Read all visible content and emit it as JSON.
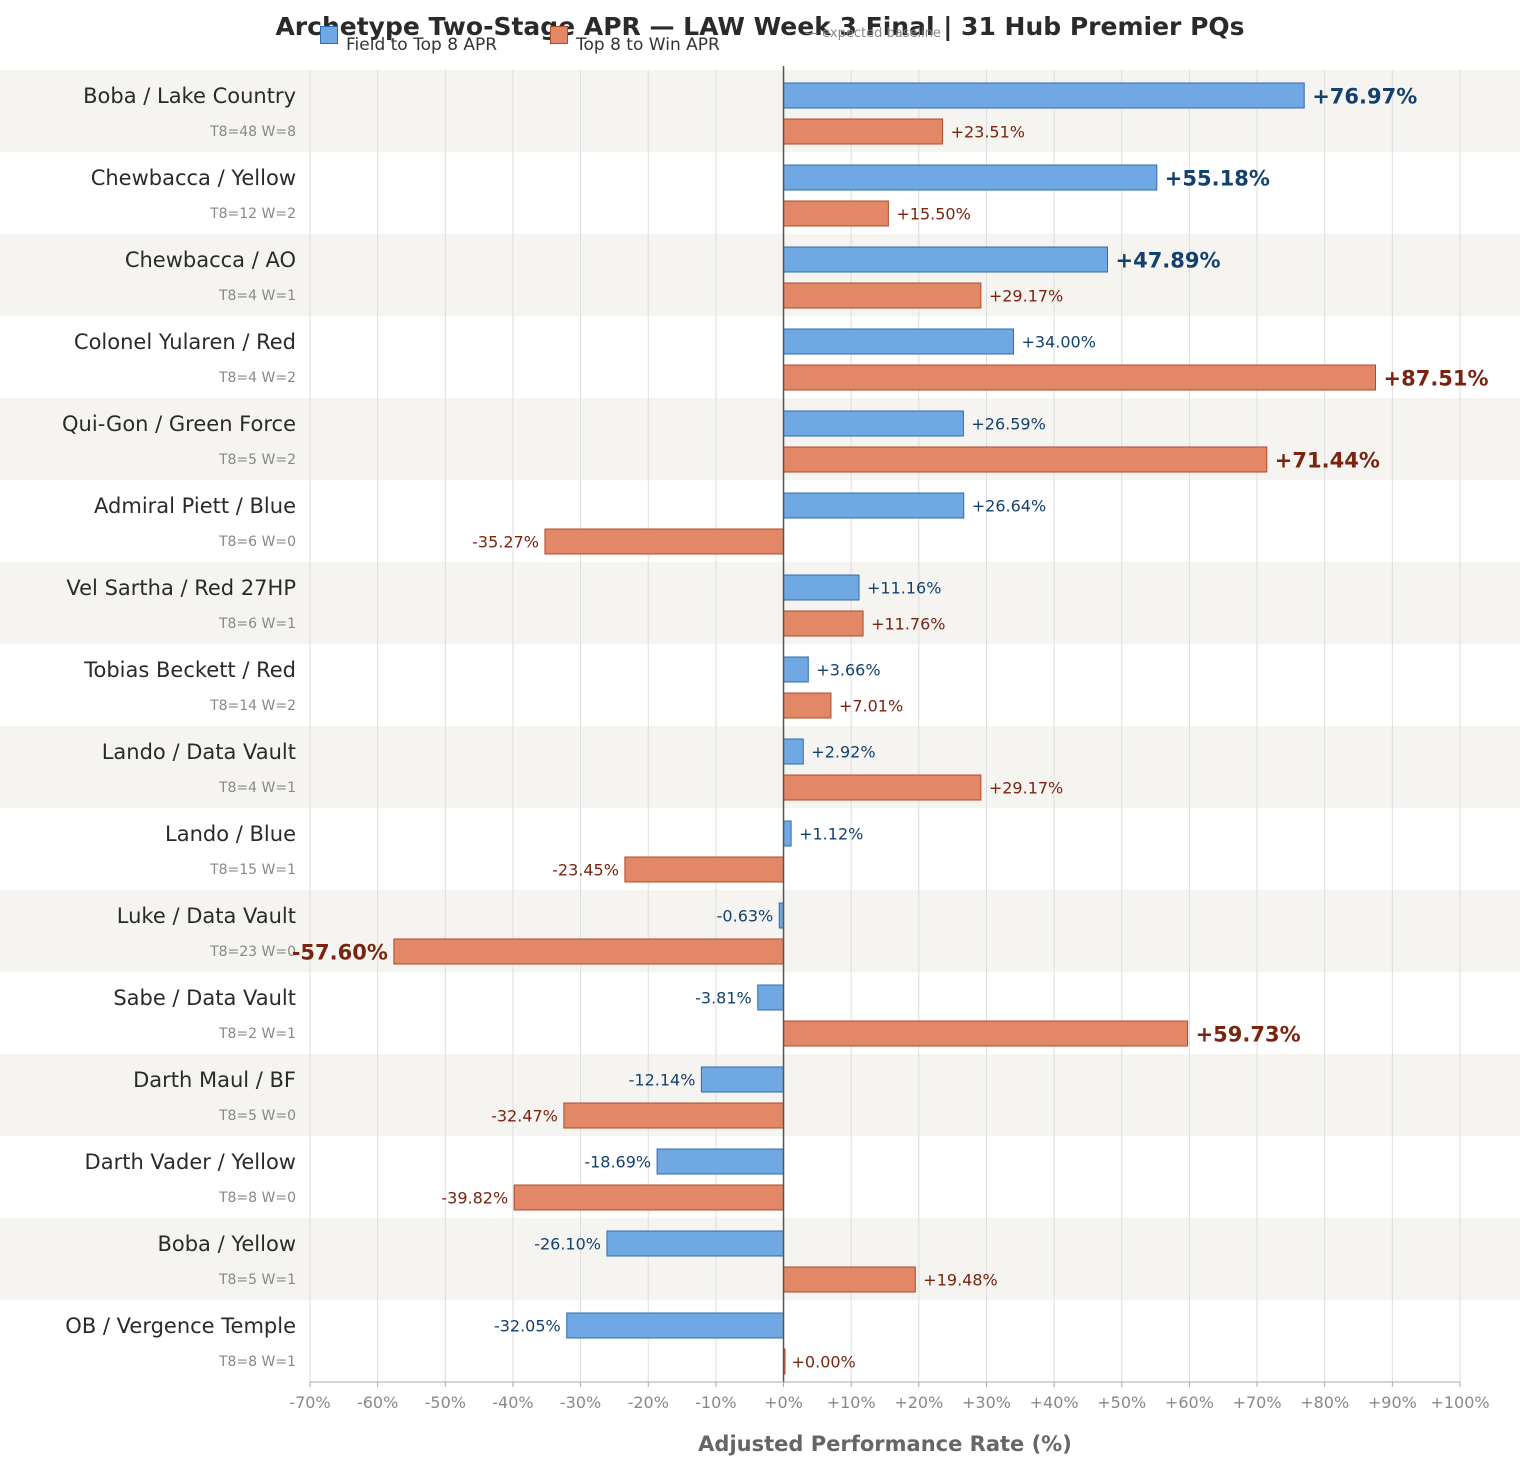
{
  "chart_data": {
    "type": "bar",
    "orientation": "horizontal",
    "title": "Archetype Two-Stage APR — LAW Week 3 Final  |  31 Hub Premier PQs",
    "xlabel": "Adjusted Performance Rate (%)",
    "xlim": [
      -70,
      100
    ],
    "xticks": [
      "-70%",
      "-60%",
      "-50%",
      "-40%",
      "-30%",
      "-20%",
      "-10%",
      "+0%",
      "+10%",
      "+20%",
      "+30%",
      "+40%",
      "+50%",
      "+60%",
      "+70%",
      "+80%",
      "+90%",
      "+100%"
    ],
    "legend": {
      "position": "top",
      "entries": [
        "Field to Top 8 APR",
        "Top 8 to Win APR"
      ],
      "baseline_label": "— expected baseline"
    },
    "colors": {
      "series1_fill": "#6fa8e3",
      "series1_stroke": "#2e6db0",
      "series1_text": "#12416e",
      "series2_fill": "#e28866",
      "series2_stroke": "#b04a2a",
      "series2_text": "#7a2410",
      "band": "#f5f4f0",
      "grid": "#dddddd",
      "axis": "#555555"
    },
    "categories": [
      {
        "label": "Boba / Lake Country",
        "sub": "T8=48  W=8"
      },
      {
        "label": "Chewbacca / Yellow",
        "sub": "T8=12  W=2"
      },
      {
        "label": "Chewbacca / AO",
        "sub": "T8=4   W=1"
      },
      {
        "label": "Colonel Yularen / Red",
        "sub": "T8=4   W=2"
      },
      {
        "label": "Qui-Gon / Green Force",
        "sub": "T8=5   W=2"
      },
      {
        "label": "Admiral Piett / Blue",
        "sub": "T8=6   W=0"
      },
      {
        "label": "Vel Sartha / Red 27HP",
        "sub": "T8=6   W=1"
      },
      {
        "label": "Tobias Beckett / Red",
        "sub": "T8=14  W=2"
      },
      {
        "label": "Lando / Data Vault",
        "sub": "T8=4   W=1"
      },
      {
        "label": "Lando / Blue",
        "sub": "T8=15  W=1"
      },
      {
        "label": "Luke / Data Vault",
        "sub": "T8=23  W=0"
      },
      {
        "label": "Sabe / Data Vault",
        "sub": "T8=2   W=1"
      },
      {
        "label": "Darth Maul / BF",
        "sub": "T8=5   W=0"
      },
      {
        "label": "Darth Vader / Yellow",
        "sub": "T8=8   W=0"
      },
      {
        "label": "Boba / Yellow",
        "sub": "T8=5   W=1"
      },
      {
        "label": "OB / Vergence Temple",
        "sub": "T8=8   W=1"
      }
    ],
    "series": [
      {
        "name": "Field to Top 8 APR",
        "values": [
          76.97,
          55.18,
          47.89,
          34.0,
          26.59,
          26.64,
          11.16,
          3.66,
          2.92,
          1.12,
          -0.63,
          -3.81,
          -12.14,
          -18.69,
          -26.1,
          -32.05
        ],
        "labels": [
          "+76.97%",
          "+55.18%",
          "+47.89%",
          "+34.00%",
          "+26.59%",
          "+26.64%",
          "+11.16%",
          "+3.66%",
          "+2.92%",
          "+1.12%",
          "-0.63%",
          "-3.81%",
          "-12.14%",
          "-18.69%",
          "-26.10%",
          "-32.05%"
        ]
      },
      {
        "name": "Top 8 to Win APR",
        "values": [
          23.51,
          15.5,
          29.17,
          87.51,
          71.44,
          -35.27,
          11.76,
          7.01,
          29.17,
          -23.45,
          -57.6,
          59.73,
          -32.47,
          -39.82,
          19.48,
          0.0
        ],
        "labels": [
          "+23.51%",
          "+15.50%",
          "+29.17%",
          "+87.51%",
          "+71.44%",
          "-35.27%",
          "+11.76%",
          "+7.01%",
          "+29.17%",
          "-23.45%",
          "-57.60%",
          "+59.73%",
          "-32.47%",
          "-39.82%",
          "+19.48%",
          "+0.00%"
        ]
      }
    ],
    "emphasis_threshold": 40
  }
}
